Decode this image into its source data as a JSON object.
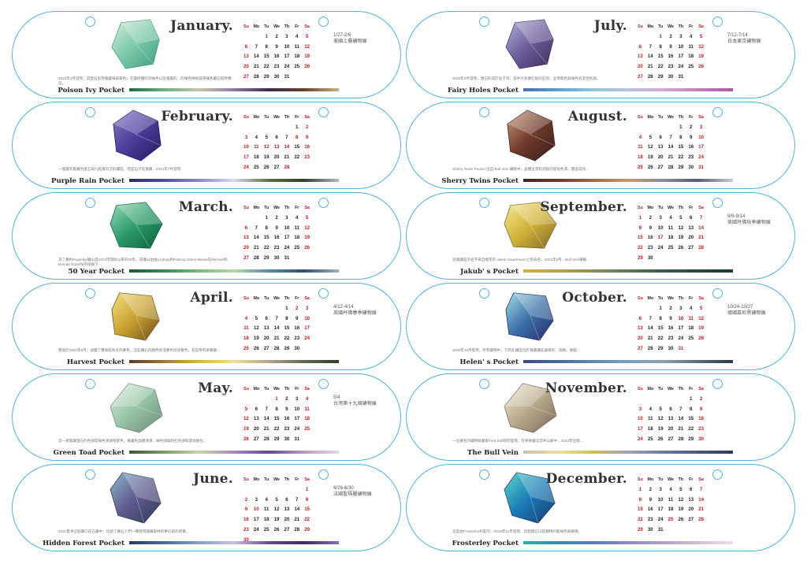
{
  "accent_color": "#4fb3dc",
  "weekday_headers": [
    "Su",
    "Mo",
    "Tu",
    "We",
    "Th",
    "Fr",
    "Sa"
  ],
  "months": [
    {
      "name": "January.",
      "pocket": "Poison Ivy Pocket",
      "event_date": "1/27-2/6",
      "event_name": "美國土桑礦物展",
      "description": "2020年2月發現，其螢石呈現蒐藏綠與紫色，在最終鹽的深綠色以及蒐藏的…的綠色條紋與帶蜂色屬石結所構造。",
      "gem_colors": [
        "#d6efe0",
        "#7cc8a8",
        "#3b9e7f"
      ],
      "gradient": [
        "#1c6b47",
        "#6fae7c",
        "#c9c6a8",
        "#8f7aa3",
        "#3a2b4d",
        "#6b3d2e",
        "#c8b47c"
      ],
      "weeks": [
        [
          "",
          "",
          "1",
          "2",
          "3",
          "4",
          "5"
        ],
        [
          "6",
          "7",
          "8",
          "9",
          "10",
          "11",
          "12"
        ],
        [
          "13",
          "14",
          "15",
          "16",
          "17",
          "18",
          "19"
        ],
        [
          "20",
          "21",
          "22",
          "23",
          "24",
          "25",
          "26"
        ],
        [
          "27",
          "28",
          "29",
          "30",
          "31",
          "",
          ""
        ]
      ],
      "red": [
        "1",
        "5",
        "12",
        "19",
        "26"
      ]
    },
    {
      "name": "February.",
      "pocket": "Purple Rain Pocket",
      "event_date": "",
      "event_name": "",
      "description": "一個蒐有蒐藏色蛋石與九點蒐的方形礦區，但是石子在蒐羅…2021年7月發現",
      "gem_colors": [
        "#8878c8",
        "#4b3d9a",
        "#211a5c"
      ],
      "gradient": [
        "#2b2a5a",
        "#554da0",
        "#8d86c9",
        "#d9d7ee",
        "#5f6f3a",
        "#2d3f2a",
        "#b4b7c4"
      ],
      "weeks": [
        [
          "",
          "",
          "",
          "",
          "",
          "1",
          "2"
        ],
        [
          "3",
          "4",
          "5",
          "6",
          "7",
          "8",
          "9"
        ],
        [
          "10",
          "11",
          "12",
          "13",
          "14",
          "15",
          "16"
        ],
        [
          "17",
          "18",
          "19",
          "20",
          "21",
          "22",
          "23"
        ],
        [
          "24",
          "25",
          "26",
          "27",
          "28",
          "",
          ""
        ]
      ],
      "red": [
        "8",
        "9",
        "11",
        "12",
        "13",
        "14",
        "28"
      ]
    },
    {
      "name": "March.",
      "pocket": "50 Year Pocket",
      "event_date": "",
      "event_name": "",
      "description": "為了慶祝Rogerley礦山自1972年開採以來的50年，該礦山由由Lindsay和Patricia Green-Banks在Michael和Brenda Sutcliffe的協助下…",
      "gem_colors": [
        "#9adbb7",
        "#2a9a6a",
        "#0f5c3d"
      ],
      "gradient": [
        "#1a5c37",
        "#3d8a58",
        "#7dbb7a",
        "#b9d6a6",
        "#5b8aa6",
        "#2e4f73",
        "#9fb0c3"
      ],
      "weeks": [
        [
          "",
          "",
          "1",
          "2",
          "3",
          "4",
          "5"
        ],
        [
          "6",
          "7",
          "8",
          "9",
          "10",
          "11",
          "12"
        ],
        [
          "13",
          "14",
          "15",
          "16",
          "17",
          "18",
          "19"
        ],
        [
          "20",
          "21",
          "22",
          "23",
          "24",
          "25",
          "26"
        ],
        [
          "27",
          "28",
          "29",
          "30",
          "31",
          "",
          ""
        ]
      ],
      "red": [
        "5",
        "12",
        "19",
        "26"
      ]
    },
    {
      "name": "April.",
      "pocket": "Harvest Pocket",
      "event_date": "4/12-4/14",
      "event_name": "英國丹佛春季礦物展",
      "description": "整個於2020年8月，收獲了豐收般秋天的黃色，這些礦石的顏色從淺黃色到深黃色，有些帶有紫羅蘭…",
      "gem_colors": [
        "#f3e07a",
        "#c9a133",
        "#6a5018"
      ],
      "gradient": [
        "#5a3a2b",
        "#a0782d",
        "#d6b64b",
        "#f0e18a",
        "#b3a58a",
        "#5d6a4a",
        "#2f3e2c"
      ],
      "weeks": [
        [
          "",
          "",
          "",
          "",
          "1",
          "2",
          "3"
        ],
        [
          "4",
          "5",
          "6",
          "7",
          "8",
          "9",
          "10"
        ],
        [
          "11",
          "12",
          "13",
          "14",
          "15",
          "16",
          "17"
        ],
        [
          "18",
          "19",
          "20",
          "21",
          "22",
          "23",
          "24"
        ],
        [
          "25",
          "26",
          "27",
          "28",
          "29",
          "30",
          ""
        ]
      ],
      "red": [
        "2",
        "3",
        "10",
        "17",
        "24"
      ]
    },
    {
      "name": "May.",
      "pocket": "Green Toad Pocket",
      "event_date": "5/4",
      "event_name": "台灣第十九屆礦物展",
      "description": "這一窩蒐藏螢石的色調是綠色清澈帶紫色，蒐藏色晶體清澈…綠色調與粉紅色調和諧地融合。",
      "gem_colors": [
        "#e2efe5",
        "#95c3a4",
        "#6e8a78"
      ],
      "gradient": [
        "#3b5a3a",
        "#7b9b6a",
        "#c9d7a9",
        "#a48ac2",
        "#5e4b8d",
        "#b79bc9",
        "#e2d6ea"
      ],
      "weeks": [
        [
          "",
          "",
          "",
          "1",
          "2",
          "3",
          "4"
        ],
        [
          "5",
          "6",
          "7",
          "8",
          "9",
          "10",
          "11"
        ],
        [
          "12",
          "13",
          "14",
          "15",
          "16",
          "17",
          "18"
        ],
        [
          "19",
          "20",
          "21",
          "22",
          "23",
          "24",
          "25"
        ],
        [
          "26",
          "27",
          "28",
          "29",
          "30",
          "31",
          ""
        ]
      ],
      "red": [
        "1",
        "4",
        "11",
        "18",
        "25"
      ]
    },
    {
      "name": "June.",
      "pocket": "Hidden Forest Pocket",
      "event_date": "6/26-6/30",
      "event_name": "法國聖瑪麗礦物展",
      "description": "2021夏季這個礦口在石牆中，這給了礦石人們一種發現隱藏森林的夢幻般的感覺。",
      "gem_colors": [
        "#8fb7c9",
        "#5f5a8f",
        "#2d3d52"
      ],
      "gradient": [
        "#273a5c",
        "#4a6b9a",
        "#8aa0c8",
        "#c8c2de",
        "#6a4b8a",
        "#3d2a5c",
        "#8e6fae"
      ],
      "weeks": [
        [
          "",
          "",
          "",
          "",
          "",
          "",
          "1"
        ],
        [
          "2",
          "3",
          "4",
          "5",
          "6",
          "7",
          "8"
        ],
        [
          "9",
          "10",
          "11",
          "12",
          "13",
          "14",
          "15"
        ],
        [
          "16",
          "17",
          "18",
          "19",
          "20",
          "21",
          "22"
        ],
        [
          "23",
          "24",
          "25",
          "26",
          "27",
          "28",
          "29"
        ],
        [
          "30",
          "",
          "",
          "",
          "",
          "",
          ""
        ]
      ],
      "red": [
        "1",
        "8",
        "10",
        "15",
        "22",
        "29",
        "30"
      ]
    },
    {
      "name": "July.",
      "pocket": "Fairy Holes Pocket",
      "event_date": "7/12-7/14",
      "event_name": "日本東京礦物展",
      "description": "2020年8月發現，螢石形成於仙子洞，其中大多夢幻般的石洞，呈現紫色與綠色的混合色調。",
      "gem_colors": [
        "#b8b7d8",
        "#6a5b9a",
        "#3e2f5e"
      ],
      "gradient": [
        "#4a6fb0",
        "#5aa0d0",
        "#8fc6d8",
        "#b9c4de",
        "#d0a8d8",
        "#c27fb8",
        "#ab5aa3"
      ],
      "weeks": [
        [
          "",
          "",
          "1",
          "2",
          "3",
          "4",
          "5"
        ],
        [
          "6",
          "7",
          "8",
          "9",
          "10",
          "11",
          "12"
        ],
        [
          "13",
          "14",
          "15",
          "16",
          "17",
          "18",
          "19"
        ],
        [
          "20",
          "21",
          "22",
          "23",
          "24",
          "25",
          "26"
        ],
        [
          "27",
          "28",
          "29",
          "30",
          "31",
          "",
          ""
        ]
      ],
      "red": [
        "1",
        "5",
        "12",
        "19",
        "26"
      ]
    },
    {
      "name": "August.",
      "pocket": "Sherry Twins Pocket",
      "event_date": "",
      "event_name": "",
      "description": "Sherry Twins Pocket 出自 Bull Vein 礦脈中，晶體呈雪莉酒般的琥珀色澤，雙晶常見。",
      "gem_colors": [
        "#c99a7a",
        "#6e3a2c",
        "#3a1e18"
      ],
      "gradient": [
        "#3b2620",
        "#6a3b2d",
        "#a0683f",
        "#c79a6a",
        "#8a8a9a",
        "#5a5a7a",
        "#d0c8cf"
      ],
      "weeks": [
        [
          "",
          "",
          "",
          "",
          "1",
          "2",
          "3"
        ],
        [
          "4",
          "5",
          "6",
          "7",
          "8",
          "9",
          "10"
        ],
        [
          "11",
          "12",
          "13",
          "14",
          "15",
          "16",
          "17"
        ],
        [
          "18",
          "19",
          "20",
          "21",
          "22",
          "23",
          "24"
        ],
        [
          "25",
          "26",
          "27",
          "28",
          "29",
          "30",
          "31"
        ]
      ],
      "red": [
        "3",
        "10",
        "17",
        "24",
        "31"
      ]
    },
    {
      "name": "September.",
      "pocket": "Jakub' s Pocket",
      "event_date": "9/6-9/14",
      "event_name": "美國丹佛秋季礦物展",
      "description": "這個礦區的名字來自捷克的 Jakub  Sauermann之名命名，2021年9月…Bull Vein礦脈…",
      "gem_colors": [
        "#f5ec9a",
        "#d2b238",
        "#7d6a2a"
      ],
      "gradient": [
        "#d6b43a",
        "#b9a24e",
        "#8a905a",
        "#5a7a5a",
        "#3a5a4a",
        "#2a4a3a",
        "#1a3a2a"
      ],
      "weeks": [
        [
          "1",
          "2",
          "3",
          "4",
          "5",
          "6",
          "7"
        ],
        [
          "8",
          "9",
          "10",
          "11",
          "12",
          "13",
          "14"
        ],
        [
          "15",
          "16",
          "17",
          "18",
          "19",
          "20",
          "21"
        ],
        [
          "22",
          "23",
          "24",
          "25",
          "26",
          "27",
          "28"
        ],
        [
          "29",
          "30",
          "",
          "",
          "",
          "",
          ""
        ]
      ],
      "red": [
        "1",
        "7",
        "14",
        "17",
        "21",
        "28"
      ]
    },
    {
      "name": "October.",
      "pocket": "Helen' s Pocket",
      "event_date": "10/24-10/27",
      "event_name": "德國慕尼黑礦物展",
      "description": "2020年10月發現，所有礦物中，只有此礦區位於蒐藏礦區邊緣的…海蝕，據聞…",
      "gem_colors": [
        "#a5dfe8",
        "#3b6fa8",
        "#2a2a6a"
      ],
      "gradient": [
        "#3a4a8a",
        "#4a6aa0",
        "#5a8ab0",
        "#7aa0c0",
        "#8aa0b0",
        "#5a6a7a",
        "#2a3a4a"
      ],
      "weeks": [
        [
          "",
          "",
          "1",
          "2",
          "3",
          "4",
          "5"
        ],
        [
          "6",
          "7",
          "8",
          "9",
          "10",
          "11",
          "12"
        ],
        [
          "13",
          "14",
          "15",
          "16",
          "17",
          "18",
          "19"
        ],
        [
          "20",
          "21",
          "22",
          "23",
          "24",
          "25",
          "26"
        ],
        [
          "27",
          "28",
          "29",
          "30",
          "31",
          "",
          ""
        ]
      ],
      "red": [
        "5",
        "6",
        "10",
        "11",
        "12",
        "19",
        "26",
        "31"
      ]
    },
    {
      "name": "November.",
      "pocket": "The Bull Vein",
      "event_date": "",
      "event_name": "",
      "description": "一位著名的礦物收藏家Fred Bull研究發現，在英格蘭北奔寧山脈中…2023年出版…",
      "gem_colors": [
        "#f0ecd8",
        "#b8a98a",
        "#7a6a5a"
      ],
      "gradient": [
        "#c8c0b0",
        "#e8e0a0",
        "#d0c050",
        "#a0a0c0",
        "#6a7aa0",
        "#4a5a7a",
        "#2a3a5a"
      ],
      "weeks": [
        [
          "",
          "",
          "",
          "",
          "",
          "1",
          "2"
        ],
        [
          "3",
          "4",
          "5",
          "6",
          "7",
          "8",
          "9"
        ],
        [
          "10",
          "11",
          "12",
          "13",
          "14",
          "15",
          "16"
        ],
        [
          "17",
          "18",
          "19",
          "20",
          "21",
          "22",
          "23"
        ],
        [
          "24",
          "25",
          "26",
          "27",
          "28",
          "29",
          "30"
        ]
      ],
      "red": [
        "2",
        "9",
        "16",
        "23",
        "30"
      ]
    },
    {
      "name": "December.",
      "pocket": "Frosterley Pocket",
      "event_date": "",
      "event_name": "",
      "description": "這是由Frosterley村莊的…2018年11月發現，這個螢石以其獨特的藍綠色調著稱。",
      "gem_colors": [
        "#5ad8c8",
        "#1a7ab8",
        "#1a3a6a"
      ],
      "gradient": [
        "#2ab0a8",
        "#3a8ab0",
        "#5a7ab8",
        "#8a8ac0",
        "#b0a0c8",
        "#d0c0d0",
        "#e8e0e8"
      ],
      "weeks": [
        [
          "1",
          "2",
          "3",
          "4",
          "5",
          "6",
          "7"
        ],
        [
          "8",
          "9",
          "10",
          "11",
          "12",
          "13",
          "14"
        ],
        [
          "15",
          "16",
          "17",
          "18",
          "19",
          "20",
          "21"
        ],
        [
          "22",
          "23",
          "24",
          "25",
          "26",
          "27",
          "28"
        ],
        [
          "29",
          "30",
          "31",
          "",
          "",
          "",
          ""
        ]
      ],
      "red": [
        "1",
        "7",
        "14",
        "21",
        "25",
        "28"
      ]
    }
  ]
}
